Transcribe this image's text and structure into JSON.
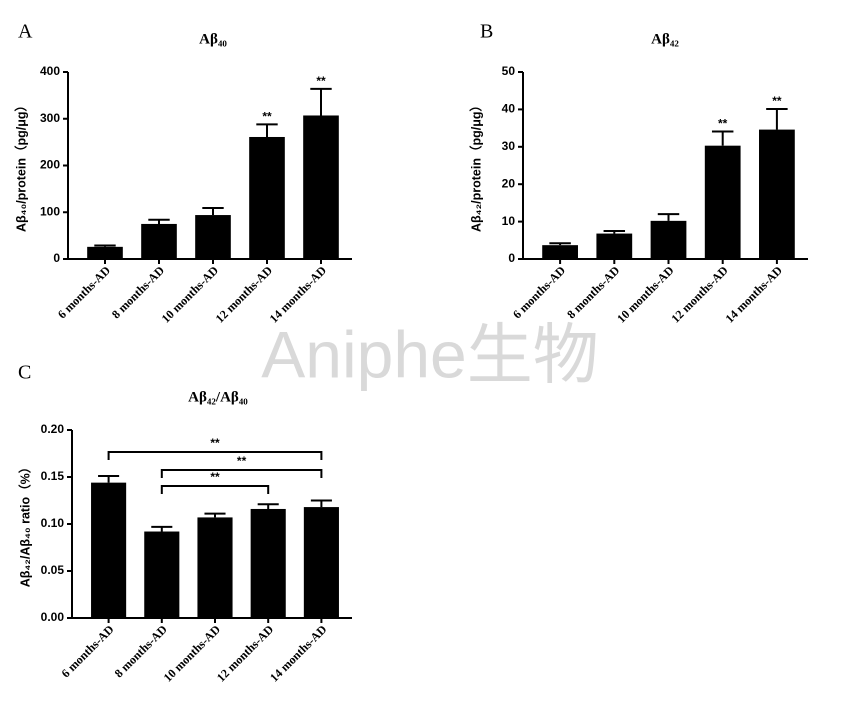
{
  "watermark": "Aniphe生物",
  "chart_data": [
    {
      "type": "bar",
      "panel_label": "A",
      "title": "Aβ₄₀",
      "ylabel": "Aβ₄₀/protein（pg/μg）",
      "categories": [
        "6 months-AD",
        "8 months-AD",
        "10 months-AD",
        "12 months-AD",
        "14 months-AD"
      ],
      "values": [
        26,
        75,
        94,
        261,
        307
      ],
      "errors": [
        3,
        9,
        15,
        27,
        57
      ],
      "color": "#000000",
      "significance": [
        null,
        null,
        null,
        "**",
        "**"
      ],
      "ylim": [
        0,
        400
      ],
      "yticks": [
        0,
        100,
        200,
        300,
        400
      ]
    },
    {
      "type": "bar",
      "panel_label": "B",
      "title": "Aβ₄₂",
      "ylabel": "Aβ₄₂/protein（pg/μg）",
      "categories": [
        "6 months-AD",
        "8 months-AD",
        "10 months-AD",
        "12 months-AD",
        "14 months-AD"
      ],
      "values": [
        3.7,
        6.8,
        10.2,
        30.3,
        34.6
      ],
      "errors": [
        0.5,
        0.7,
        1.8,
        3.8,
        5.5
      ],
      "color": "#000000",
      "significance": [
        null,
        null,
        null,
        "**",
        "**"
      ],
      "ylim": [
        0,
        50
      ],
      "yticks": [
        0,
        10,
        20,
        30,
        40,
        50
      ]
    },
    {
      "type": "bar",
      "panel_label": "C",
      "title": "Aβ₄₂/Aβ₄₀",
      "ylabel": "Aβ₄₂/Aβ₄₀ ratio（%）",
      "categories": [
        "6 months-AD",
        "8 months-AD",
        "10 months-AD",
        "12 months-AD",
        "14 months-AD"
      ],
      "values": [
        0.144,
        0.092,
        0.107,
        0.116,
        0.118
      ],
      "errors": [
        0.007,
        0.005,
        0.004,
        0.005,
        0.007
      ],
      "color": "#000000",
      "comparisons": [
        {
          "from": "6 months-AD",
          "to": "14 months-AD",
          "label": "**"
        },
        {
          "from": "8 months-AD",
          "to": "14 months-AD",
          "label": "**"
        },
        {
          "from": "8 months-AD",
          "to": "12 months-AD",
          "label": "**"
        }
      ],
      "ylim": [
        0,
        0.2
      ],
      "yticks": [
        {
          "value": 0,
          "label": "0.00"
        },
        0.05,
        {
          "value": 0.1,
          "label": "0.10"
        },
        0.15,
        {
          "value": 0.2,
          "label": "0.20"
        }
      ]
    }
  ]
}
